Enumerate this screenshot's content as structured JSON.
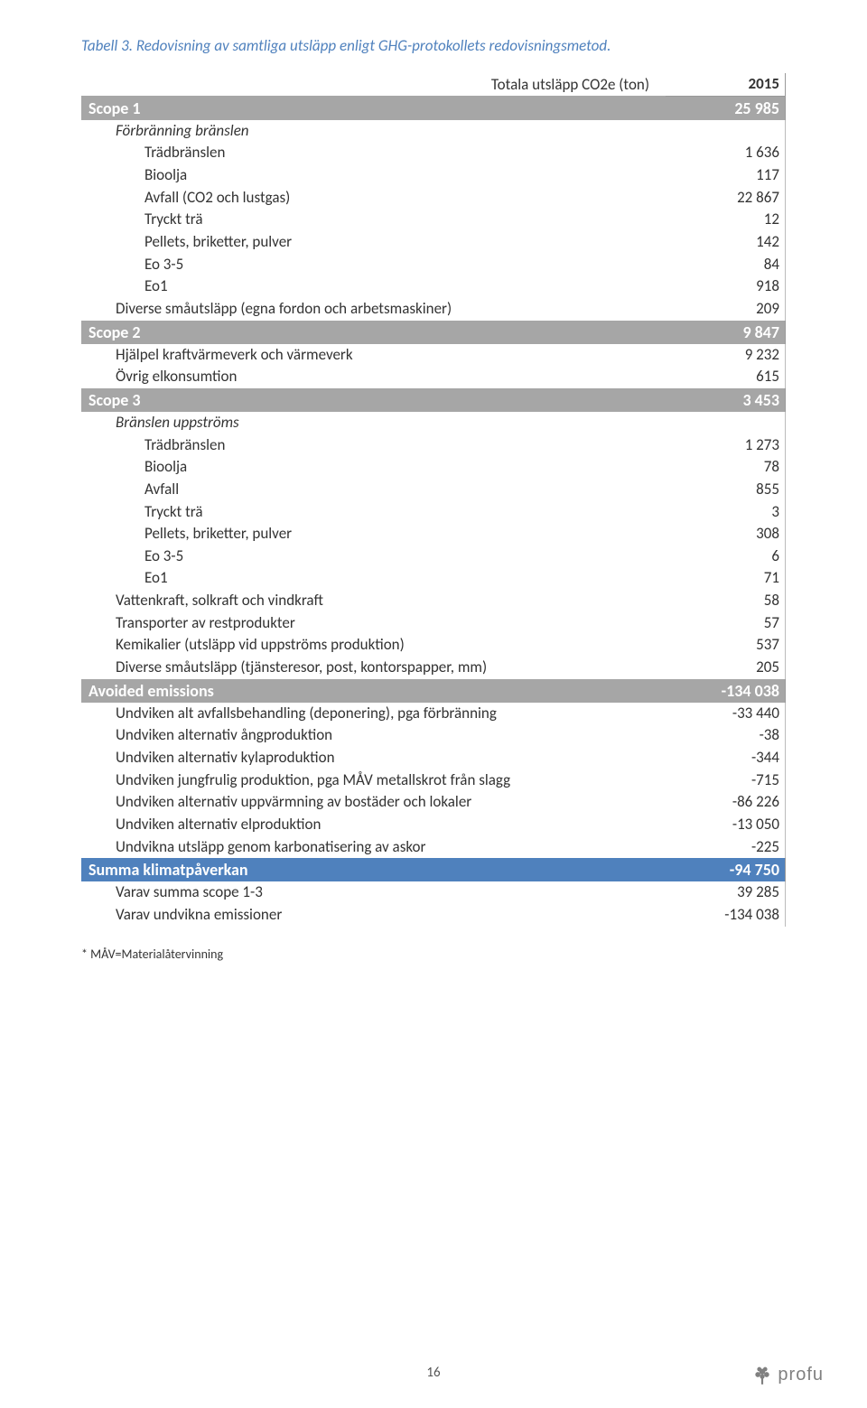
{
  "caption": "Tabell 3.   Redovisning av samtliga utsläpp enligt GHG-protokollets redovisningsmetod.",
  "header_label": "Totala utsläpp CO2e (ton)",
  "header_year": "2015",
  "sections": [
    {
      "title": "Scope 1",
      "value": "25 985",
      "style": "grey",
      "groups": [
        {
          "label": "Förbränning bränslen",
          "italic": true,
          "rows": [
            {
              "label": "Trädbränslen",
              "value": "1 636"
            },
            {
              "label": "Bioolja",
              "value": "117"
            },
            {
              "label": "Avfall (CO2 och lustgas)",
              "value": "22 867"
            },
            {
              "label": "Tryckt trä",
              "value": "12"
            },
            {
              "label": "Pellets, briketter, pulver",
              "value": "142"
            },
            {
              "label": "Eo 3-5",
              "value": "84"
            },
            {
              "label": "Eo1",
              "value": "918"
            }
          ]
        },
        {
          "label": "Diverse småutsläpp (egna fordon och arbetsmaskiner)",
          "value": "209"
        }
      ]
    },
    {
      "title": "Scope 2",
      "value": "9 847",
      "style": "grey",
      "groups": [
        {
          "label": "Hjälpel kraftvärmeverk och värmeverk",
          "value": "9 232"
        },
        {
          "label": "Övrig elkonsumtion",
          "value": "615"
        }
      ]
    },
    {
      "title": "Scope 3",
      "value": "3 453",
      "style": "grey",
      "groups": [
        {
          "label": "Bränslen uppströms",
          "italic": true,
          "rows": [
            {
              "label": "Trädbränslen",
              "value": "1 273"
            },
            {
              "label": "Bioolja",
              "value": "78"
            },
            {
              "label": "Avfall",
              "value": "855"
            },
            {
              "label": "Tryckt trä",
              "value": "3"
            },
            {
              "label": "Pellets, briketter, pulver",
              "value": "308"
            },
            {
              "label": "Eo 3-5",
              "value": "6"
            },
            {
              "label": "Eo1",
              "value": "71"
            }
          ]
        },
        {
          "label": "Vattenkraft, solkraft och vindkraft",
          "value": "58"
        },
        {
          "label": "Transporter av restprodukter",
          "value": "57"
        },
        {
          "label": "Kemikalier (utsläpp vid uppströms produktion)",
          "value": "537"
        },
        {
          "label": "Diverse småutsläpp (tjänsteresor, post, kontorspapper, mm)",
          "value": "205"
        }
      ]
    },
    {
      "title": "Avoided emissions",
      "value": "-134 038",
      "style": "grey",
      "groups": [
        {
          "label": "Undviken alt avfallsbehandling (deponering), pga förbränning",
          "value": "-33 440"
        },
        {
          "label": "Undviken alternativ ångproduktion",
          "value": "-38"
        },
        {
          "label": "Undviken alternativ kylaproduktion",
          "value": "-344"
        },
        {
          "label": "Undviken jungfrulig produktion, pga MÅV metallskrot från slagg",
          "value": "-715"
        },
        {
          "label": "Undviken alternativ uppvärmning av bostäder och lokaler",
          "value": "-86 226"
        },
        {
          "label": "Undviken alternativ elproduktion",
          "value": "-13 050"
        },
        {
          "label": "Undvikna utsläpp genom karbonatisering av askor",
          "value": "-225"
        }
      ]
    },
    {
      "title": "Summa klimatpåverkan",
      "value": "-94 750",
      "style": "blue",
      "groups": [
        {
          "label": "Varav summa scope 1-3",
          "value": "39 285"
        },
        {
          "label": "Varav undvikna emissioner",
          "value": "-134 038"
        }
      ]
    }
  ],
  "footnote": "* MÅV=Materialåtervinning",
  "page_number": "16",
  "logo_text": "profu",
  "colors": {
    "caption": "#4f81bd",
    "section_grey": "#a6a6a6",
    "section_blue": "#4f81bd",
    "logo_tree": "#808080"
  }
}
